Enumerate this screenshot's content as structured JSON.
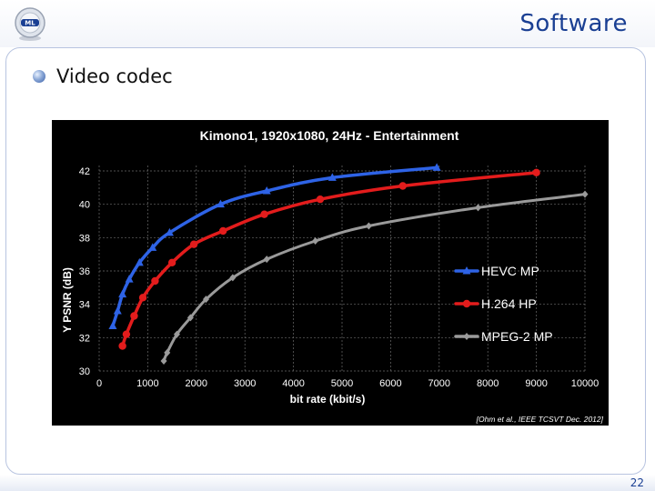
{
  "header": {
    "title": "Software"
  },
  "bullet": {
    "text": "Video codec"
  },
  "page": {
    "number": "22"
  },
  "colors": {
    "title": "#1a3f93",
    "hevc": "#2e63e6",
    "h264": "#e31c1c",
    "mpeg2": "#9a9a9a"
  },
  "chart_data": {
    "type": "line",
    "title": "Kimono1, 1920x1080, 24Hz - Entertainment",
    "xlabel": "bit rate (kbit/s)",
    "ylabel": "Y PSNR (dB)",
    "xlim": [
      0,
      10000
    ],
    "ylim": [
      30,
      42
    ],
    "xticks": [
      0,
      1000,
      2000,
      3000,
      4000,
      5000,
      6000,
      7000,
      8000,
      9000,
      10000
    ],
    "yticks": [
      30,
      32,
      34,
      36,
      38,
      40,
      42
    ],
    "grid": true,
    "legend_position": "right",
    "citation": "[Ohm et al., IEEE TCSVT Dec. 2012]",
    "series": [
      {
        "name": "HEVC MP",
        "marker": "triangle",
        "color": "#2e63e6",
        "points": [
          [
            280,
            32.7
          ],
          [
            380,
            33.6
          ],
          [
            480,
            34.6
          ],
          [
            620,
            35.5
          ],
          [
            830,
            36.5
          ],
          [
            1100,
            37.4
          ],
          [
            1450,
            38.3
          ],
          [
            2500,
            40.0
          ],
          [
            3450,
            40.8
          ],
          [
            4800,
            41.6
          ],
          [
            6950,
            42.2
          ]
        ]
      },
      {
        "name": "H.264 HP",
        "marker": "circle",
        "color": "#e31c1c",
        "points": [
          [
            480,
            31.5
          ],
          [
            560,
            32.2
          ],
          [
            720,
            33.3
          ],
          [
            900,
            34.4
          ],
          [
            1150,
            35.4
          ],
          [
            1500,
            36.5
          ],
          [
            1950,
            37.6
          ],
          [
            2550,
            38.4
          ],
          [
            3400,
            39.4
          ],
          [
            4550,
            40.3
          ],
          [
            6250,
            41.1
          ],
          [
            9000,
            41.9
          ]
        ]
      },
      {
        "name": "MPEG-2 MP",
        "marker": "diamond",
        "color": "#9a9a9a",
        "points": [
          [
            1330,
            30.6
          ],
          [
            1400,
            31.1
          ],
          [
            1600,
            32.2
          ],
          [
            1880,
            33.2
          ],
          [
            2200,
            34.3
          ],
          [
            2750,
            35.6
          ],
          [
            3450,
            36.7
          ],
          [
            4450,
            37.8
          ],
          [
            5550,
            38.7
          ],
          [
            7800,
            39.8
          ],
          [
            10000,
            40.6
          ]
        ]
      }
    ]
  }
}
